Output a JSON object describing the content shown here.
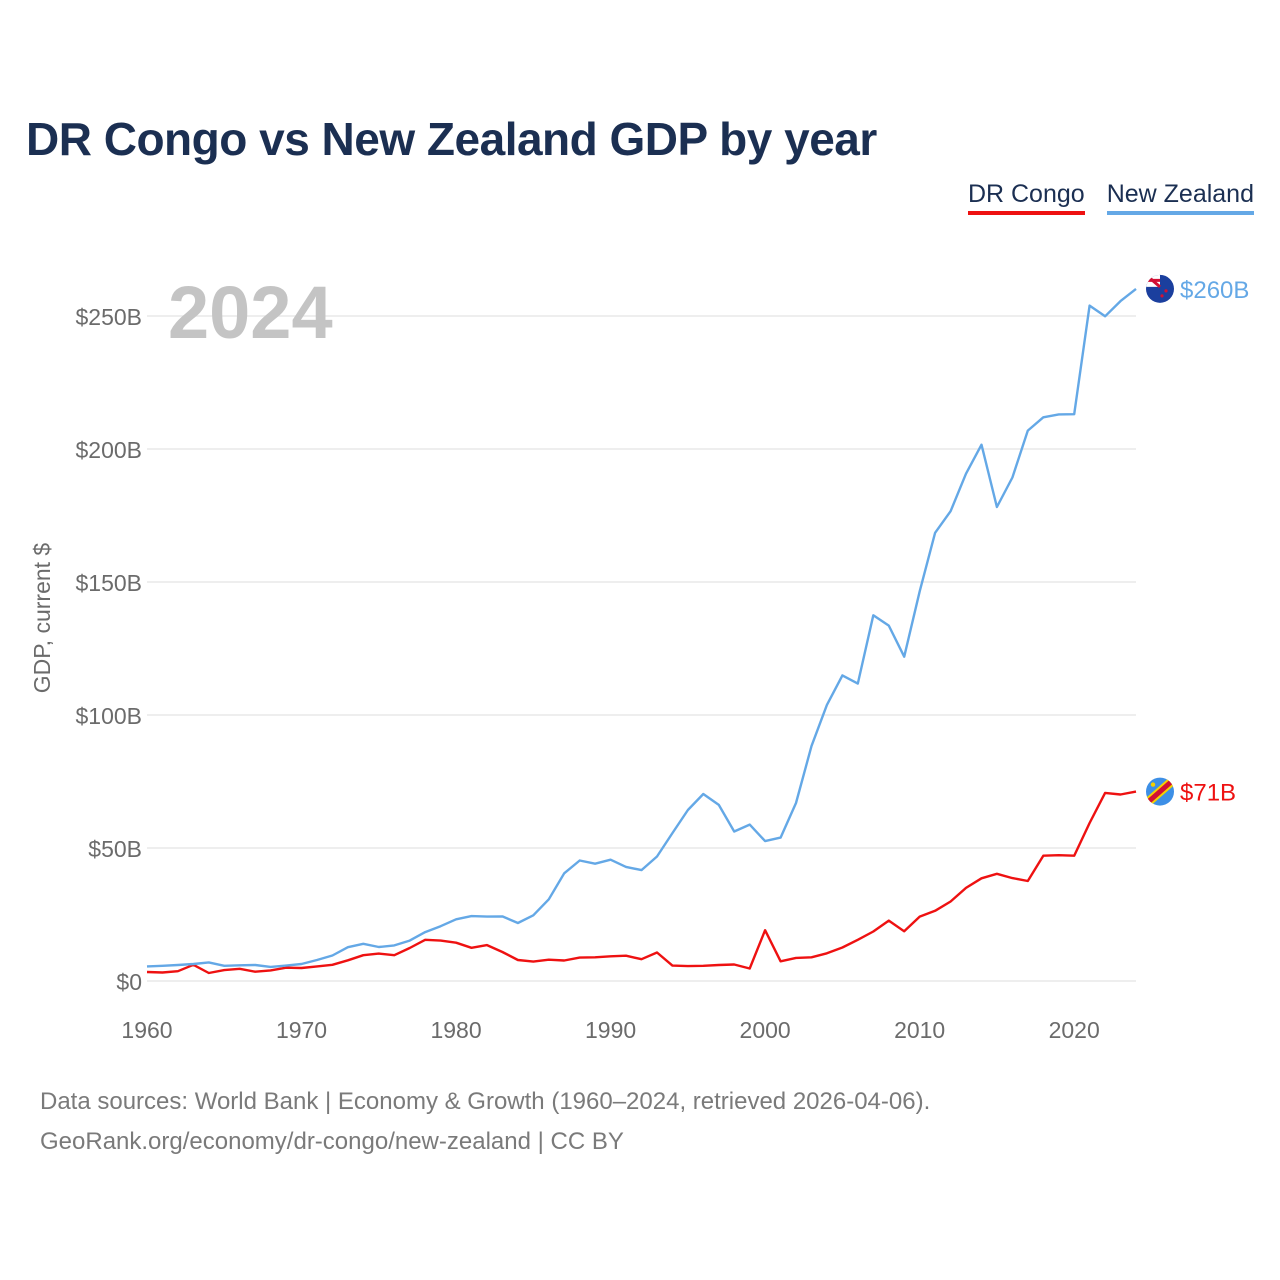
{
  "title": "DR Congo vs New Zealand GDP by year",
  "legend": [
    {
      "label": "DR Congo",
      "color": "#ee1111"
    },
    {
      "label": "New Zealand",
      "color": "#64a8e6"
    }
  ],
  "year_watermark": "2024",
  "footer": {
    "line1": "Data sources: World Bank | Economy & Growth (1960–2024, retrieved 2026-04-06).",
    "line2": "GeoRank.org/economy/dr-congo/new-zealand | CC BY"
  },
  "chart_data": {
    "type": "line",
    "title": "DR Congo vs New Zealand GDP by year",
    "xlabel": "",
    "ylabel": "GDP, current $",
    "xlim": [
      1960,
      2024
    ],
    "ylim": [
      0,
      260
    ],
    "y_unit": "billion US$",
    "x_ticks": [
      1960,
      1970,
      1980,
      1990,
      2000,
      2010,
      2020
    ],
    "x_tick_labels": [
      "1960",
      "1970",
      "1980",
      "1990",
      "2000",
      "2010",
      "2020"
    ],
    "y_ticks": [
      0,
      50,
      100,
      150,
      200,
      250
    ],
    "y_tick_labels": [
      "$0",
      "$50B",
      "$100B",
      "$150B",
      "$200B",
      "$250B"
    ],
    "grid": true,
    "legend_position": "top-right",
    "x": [
      1960,
      1961,
      1962,
      1963,
      1964,
      1965,
      1966,
      1967,
      1968,
      1969,
      1970,
      1971,
      1972,
      1973,
      1974,
      1975,
      1976,
      1977,
      1978,
      1979,
      1980,
      1981,
      1982,
      1983,
      1984,
      1985,
      1986,
      1987,
      1988,
      1989,
      1990,
      1991,
      1992,
      1993,
      1994,
      1995,
      1996,
      1997,
      1998,
      1999,
      2000,
      2001,
      2002,
      2003,
      2004,
      2005,
      2006,
      2007,
      2008,
      2009,
      2010,
      2011,
      2012,
      2013,
      2014,
      2015,
      2016,
      2017,
      2018,
      2019,
      2020,
      2021,
      2022,
      2023,
      2024
    ],
    "series": [
      {
        "name": "DR Congo",
        "color": "#ee1111",
        "end_label": "$71B",
        "values": [
          3.4,
          3.2,
          3.7,
          6.1,
          3.0,
          4.1,
          4.6,
          3.5,
          4.0,
          5.0,
          4.9,
          5.5,
          6.1,
          7.8,
          9.7,
          10.3,
          9.7,
          12.4,
          15.5,
          15.2,
          14.4,
          12.5,
          13.5,
          10.9,
          7.9,
          7.3,
          8.0,
          7.7,
          8.8,
          8.9,
          9.3,
          9.5,
          8.2,
          10.7,
          5.8,
          5.6,
          5.7,
          6.0,
          6.2,
          4.7,
          19.1,
          7.4,
          8.7,
          8.9,
          10.4,
          12.6,
          15.5,
          18.6,
          22.7,
          18.7,
          24.2,
          26.4,
          29.9,
          35.0,
          38.6,
          40.3,
          38.7,
          37.6,
          47.1,
          47.3,
          47.1,
          59.4,
          70.7,
          70.1,
          71.2
        ]
      },
      {
        "name": "New Zealand",
        "color": "#64a8e6",
        "end_label": "$260B",
        "values": [
          5.5,
          5.7,
          6.0,
          6.4,
          7.0,
          5.7,
          5.9,
          6.0,
          5.3,
          5.8,
          6.4,
          7.9,
          9.6,
          12.7,
          14.0,
          12.8,
          13.4,
          15.2,
          18.4,
          20.6,
          23.2,
          24.4,
          24.2,
          24.3,
          21.8,
          24.7,
          30.7,
          40.5,
          45.3,
          44.1,
          45.6,
          42.9,
          41.7,
          46.8,
          55.6,
          64.3,
          70.3,
          66.2,
          56.2,
          58.8,
          52.6,
          53.9,
          66.9,
          88.3,
          103.8,
          114.9,
          111.8,
          137.5,
          133.6,
          121.9,
          146.5,
          168.5,
          176.6,
          190.7,
          201.6,
          178.2,
          189.3,
          206.9,
          211.9,
          213.0,
          213.1,
          253.9,
          249.9,
          255.6,
          260.2
        ]
      }
    ]
  }
}
